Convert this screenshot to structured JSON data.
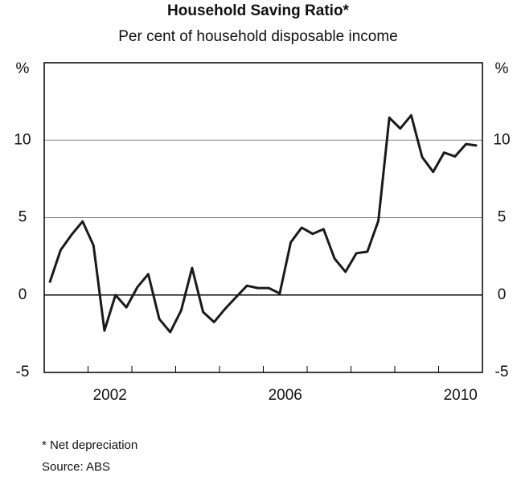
{
  "chart_data": {
    "type": "line",
    "title": "Household Saving Ratio*",
    "subtitle": "Per cent of household disposable income",
    "y_unit": "%",
    "footnotes": [
      "* Net depreciation",
      "Source: ABS"
    ],
    "x": [
      2001.125,
      2001.375,
      2001.625,
      2001.875,
      2002.125,
      2002.375,
      2002.625,
      2002.875,
      2003.125,
      2003.375,
      2003.625,
      2003.875,
      2004.125,
      2004.375,
      2004.625,
      2004.875,
      2005.125,
      2005.375,
      2005.625,
      2005.875,
      2006.125,
      2006.375,
      2006.625,
      2006.875,
      2007.125,
      2007.375,
      2007.625,
      2007.875,
      2008.125,
      2008.375,
      2008.625,
      2008.875,
      2009.125,
      2009.375,
      2009.625,
      2009.875,
      2010.125,
      2010.375,
      2010.625,
      2010.875
    ],
    "series": [
      {
        "name": "Household saving ratio",
        "color": "#1a1a1a",
        "values": [
          0.8,
          2.9,
          3.9,
          4.75,
          3.2,
          -2.3,
          0,
          -0.8,
          0.5,
          1.35,
          -1.55,
          -2.4,
          -1.0,
          1.75,
          -1.1,
          -1.75,
          -0.9,
          -0.15,
          0.6,
          0.45,
          0.45,
          0.1,
          3.4,
          4.35,
          3.95,
          4.25,
          2.35,
          1.5,
          2.7,
          2.8,
          4.8,
          11.45,
          10.75,
          11.6,
          8.9,
          7.95,
          9.2,
          8.95,
          9.75,
          9.65
        ]
      }
    ],
    "xlim": [
      2001,
      2011
    ],
    "xticks": [
      {
        "value": 2002.5,
        "label": "2002"
      },
      {
        "value": 2006.5,
        "label": "2006"
      },
      {
        "value": 2010.5,
        "label": "2010"
      }
    ],
    "xminor_ticks": [
      2002,
      2003,
      2004,
      2005,
      2006,
      2007,
      2008,
      2009,
      2010
    ],
    "ylim": [
      -5,
      15
    ],
    "yticks": [
      -5,
      0,
      5,
      10
    ],
    "grid": true
  }
}
